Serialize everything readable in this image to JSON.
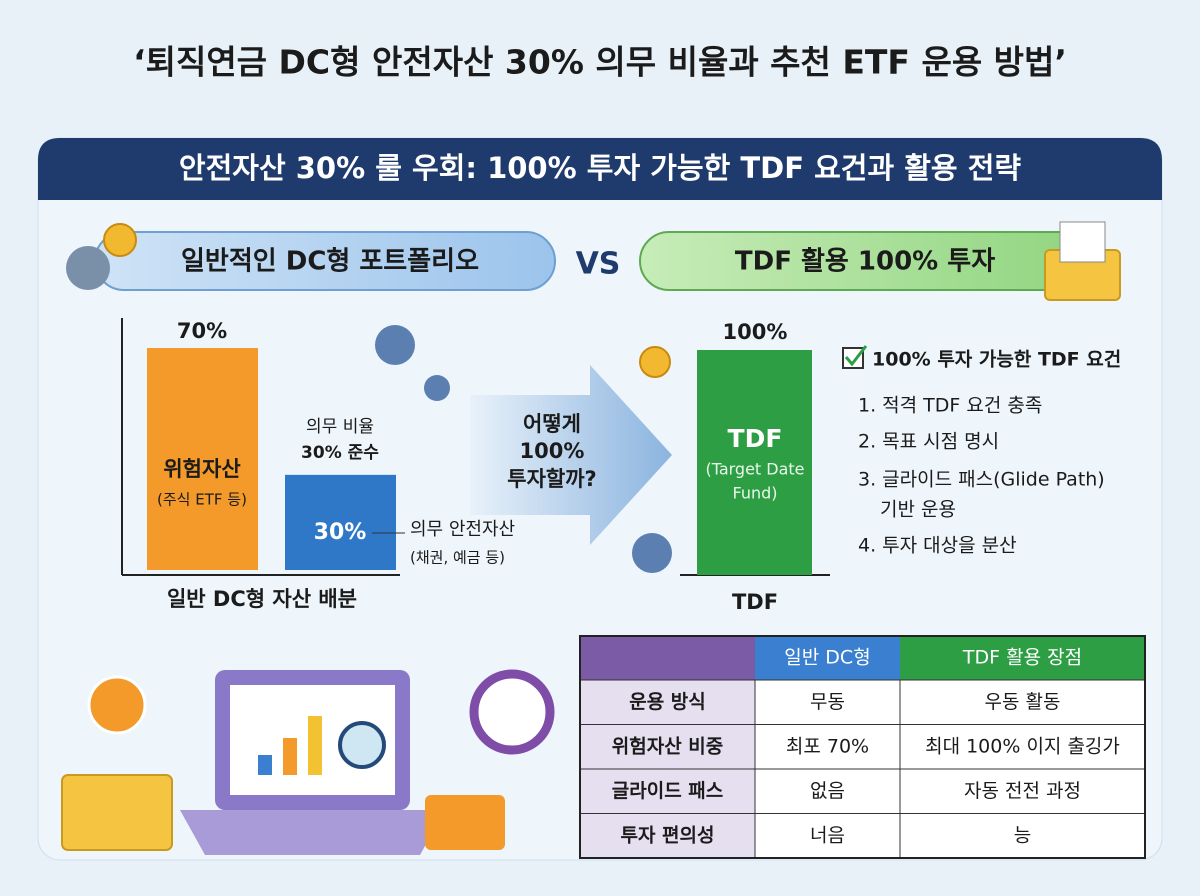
{
  "header": {
    "title": "‘퇴직연금 DC형 안전자산 30% 의무 비율과 추천 ETF 운용 방법’"
  },
  "banner": "안전자산 30% 룰 우회: 100% 투자 가능한 TDF 요건과 활용 전략",
  "left_pill": "일반적인 DC형 포트폴리오",
  "vs": "VS",
  "right_pill": "TDF 활용 100% 투자",
  "left_chart": {
    "bars": [
      {
        "value": 70,
        "value_label": "70%",
        "label": "위험자산",
        "sublabel": "(주식 ETF 등)"
      },
      {
        "value": 30,
        "value_label": "30%",
        "caption": [
          "의무 비율",
          "30% 준수"
        ],
        "note": [
          "의무 안전자산",
          "(채권, 예금 등)"
        ]
      }
    ],
    "axis_label": "일반 DC형 자산 배분"
  },
  "arrow_text": [
    "어떻게",
    "100%",
    "투자할까?"
  ],
  "right_chart": {
    "bars": [
      {
        "value": 100,
        "value_label": "100%",
        "label": "TDF",
        "sublabel": [
          "(Target Date",
          "Fund)"
        ]
      }
    ],
    "axis_label": "TDF"
  },
  "requirements": {
    "title": "100% 투자 가능한 TDF 요건",
    "items": [
      [
        "1. 적격 TDF 요건 충족"
      ],
      [
        "2. 목표 시점 명시"
      ],
      [
        "3. 글라이드 패스(Glide Path)",
        "기반 운용"
      ],
      [
        "4. 투자 대상을 분산"
      ]
    ]
  },
  "table": {
    "header": [
      "일반 DC형",
      "TDF 활용 장점"
    ],
    "rows": [
      [
        "운용 방식",
        "무동",
        "우동 활동"
      ],
      [
        "위험자산 비중",
        "최포 70%",
        "최대 100% 이지 출깅가"
      ],
      [
        "글라이드 패스",
        "없음",
        "자동 전전 과정"
      ],
      [
        "투자 편의성",
        "너음",
        "능"
      ]
    ]
  }
}
